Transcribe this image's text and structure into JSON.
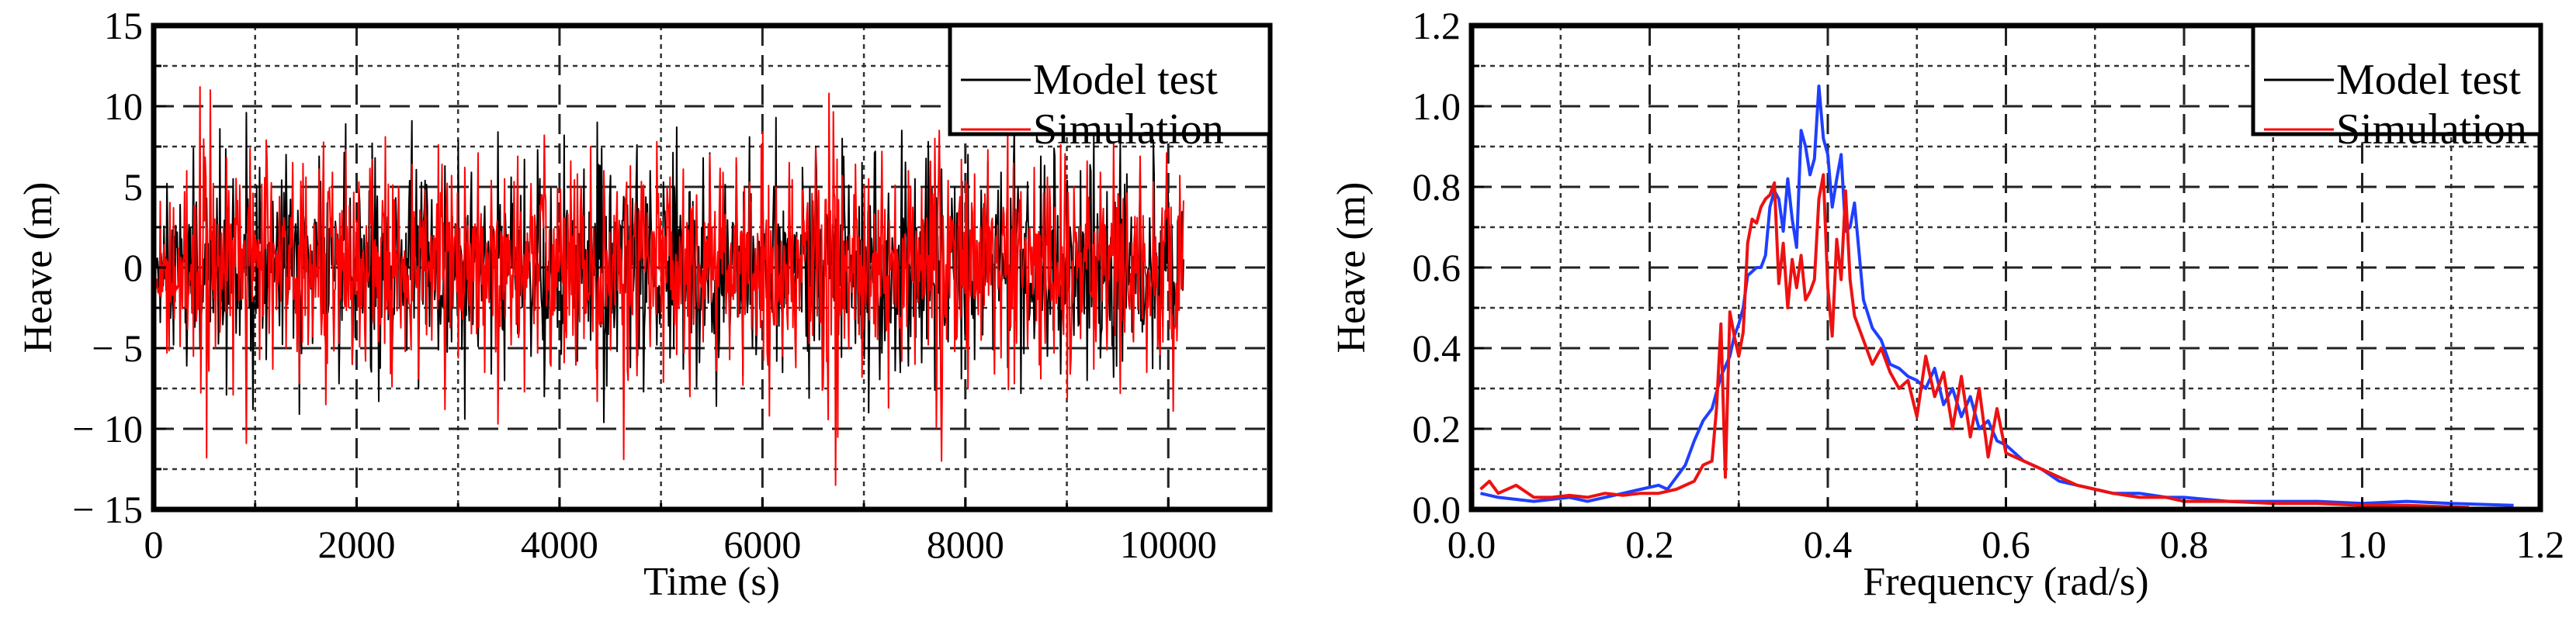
{
  "chart_data": [
    {
      "type": "line",
      "xlabel": "Time (s)",
      "ylabel": "Heave (m)",
      "xlim": [
        0,
        11000
      ],
      "ylim": [
        -15,
        15
      ],
      "xticks": [
        0,
        2000,
        4000,
        6000,
        8000,
        10000
      ],
      "xtick_labels": [
        "0",
        "2000",
        "4000",
        "6000",
        "8000",
        "10000"
      ],
      "yticks": [
        15,
        10,
        5,
        0,
        -5,
        -10,
        -15
      ],
      "ytick_labels": [
        "15",
        "10",
        "5",
        "0",
        "− 5",
        "− 10",
        "− 15"
      ],
      "grid": true,
      "legend": {
        "placement": "top-right",
        "entries": [
          {
            "label": "Model test",
            "color": "#000000"
          },
          {
            "label": "Simulation",
            "color": "#ff0000"
          }
        ]
      },
      "series": [
        {
          "name": "Model test",
          "color": "#000000",
          "x_range": [
            0,
            10150
          ],
          "envelope_note": "irregular heave time series, mostly within ±6 m",
          "values": [
            2.1,
            -3.4,
            5.2,
            -4.8,
            3.9,
            -6.1,
            7.4,
            -5.0,
            4.3,
            -2.8,
            8.6,
            -7.9,
            5.5,
            -4.2,
            9.6,
            -8.8,
            6.2,
            -5.7,
            4.1,
            -3.6,
            7.0,
            -6.4,
            5.8,
            -9.1,
            3.3,
            -4.7,
            6.9,
            -5.3,
            4.6,
            -7.2,
            8.9,
            -6.0,
            5.1,
            -4.4,
            7.7,
            -8.3,
            6.6,
            -5.9,
            4.8,
            -3.9,
            9.1,
            -7.5,
            5.4,
            -6.8,
            4.2,
            -5.1,
            6.3,
            -4.6,
            7.9,
            -9.4,
            5.9,
            -4.9,
            3.8,
            -6.6,
            8.4,
            -7.0,
            5.6,
            -4.1,
            6.7,
            -5.5,
            7.3,
            -8.0,
            4.9,
            -3.7,
            8.2,
            -6.9,
            5.0,
            -5.8,
            6.1,
            -4.5,
            9.0,
            -9.6,
            5.7,
            -5.2,
            4.4,
            -6.2,
            7.6,
            -7.7,
            6.0,
            -4.8,
            5.3,
            -5.6,
            8.7,
            -6.3,
            4.7,
            -7.4,
            6.8,
            -5.0,
            7.1,
            -8.6,
            5.2,
            -4.3,
            6.4,
            -6.7,
            8.1,
            -5.4,
            4.5,
            -7.1,
            9.3,
            -6.5,
            5.6,
            -4.0,
            6.2,
            -8.1,
            7.5,
            -5.8,
            4.9,
            -6.0,
            8.0,
            -7.3,
            5.1,
            -4.7,
            6.5,
            -9.0,
            7.2,
            -5.3,
            4.6,
            -6.4,
            8.5,
            -6.1,
            5.5,
            -5.9,
            7.8,
            -7.6,
            6.1,
            -4.6,
            5.0,
            -6.9,
            7.0,
            -5.7,
            4.8,
            -8.4,
            6.6,
            -4.9,
            5.9,
            -6.2,
            8.8,
            -7.8,
            5.3,
            -4.4,
            6.9,
            -5.5,
            7.4,
            -6.6,
            5.4,
            -4.2,
            6.0,
            -7.0,
            8.3,
            -5.6,
            4.7,
            -6.8,
            7.7,
            -8.2,
            5.8,
            -4.5,
            6.3,
            -5.1,
            7.9,
            -6.3,
            5.2,
            -7.5,
            4.9,
            -3.8
          ]
        },
        {
          "name": "Simulation",
          "color": "#ff0000",
          "x_range": [
            0,
            10150
          ],
          "envelope_note": "irregular heave time series, mostly within ±6 m, peaks to about ±12 m",
          "values": [
            -2.6,
            4.1,
            -5.3,
            3.7,
            -4.9,
            6.0,
            -5.5,
            11.2,
            -11.8,
            5.2,
            -4.0,
            6.8,
            -7.9,
            5.1,
            -10.9,
            4.6,
            -5.7,
            7.9,
            -6.3,
            4.4,
            -5.0,
            6.5,
            -7.2,
            5.6,
            -4.3,
            6.1,
            -8.5,
            5.9,
            -4.7,
            7.3,
            -6.0,
            5.3,
            -5.8,
            6.7,
            -4.6,
            8.1,
            -7.4,
            5.0,
            -5.2,
            6.4,
            -6.9,
            4.8,
            -4.5,
            7.6,
            -8.8,
            5.7,
            -5.6,
            6.2,
            -4.1,
            7.1,
            -6.5,
            5.4,
            -9.7,
            5.5,
            -4.8,
            6.9,
            -7.7,
            5.2,
            -5.3,
            8.2,
            -6.1,
            4.9,
            -5.9,
            6.6,
            -7.0,
            5.8,
            -4.4,
            7.5,
            -8.3,
            6.0,
            -5.1,
            4.7,
            -11.9,
            6.3,
            -6.7,
            5.1,
            -4.9,
            7.8,
            -7.1,
            5.6,
            -5.4,
            6.1,
            -8.0,
            4.5,
            -4.6,
            7.0,
            -6.4,
            5.9,
            -5.7,
            6.8,
            -7.3,
            5.3,
            -4.2,
            8.4,
            -9.2,
            5.0,
            -5.5,
            6.5,
            -6.2,
            4.8,
            -4.7,
            7.4,
            -7.6,
            10.8,
            -13.5,
            5.7,
            -5.0,
            6.4,
            -6.8,
            5.5,
            -4.3,
            7.2,
            -8.7,
            5.1,
            -5.8,
            6.0,
            -6.0,
            4.9,
            -4.8,
            8.0,
            -12.0,
            5.4,
            -5.2,
            6.7,
            -7.5,
            5.8,
            -4.5,
            7.3,
            -6.6,
            5.2,
            -5.6,
            8.6,
            -7.2,
            4.7,
            -4.9,
            6.2,
            -6.9,
            5.6,
            -5.3,
            7.6,
            -8.1,
            5.0,
            -4.4,
            6.6,
            -6.3,
            5.9,
            -5.1,
            7.7,
            -7.8,
            4.6,
            -4.6,
            6.9,
            -6.5,
            5.3,
            -5.4,
            7.1,
            -8.9,
            5.7,
            -4.7
          ]
        }
      ]
    },
    {
      "type": "line",
      "xlabel": "Frequency (rad/s)",
      "ylabel": "Heave (m)",
      "xlim": [
        0,
        1.2
      ],
      "ylim": [
        0,
        1.2
      ],
      "xticks": [
        0.0,
        0.2,
        0.4,
        0.6,
        0.8,
        1.0,
        1.2
      ],
      "xtick_labels": [
        "0.0",
        "0.2",
        "0.4",
        "0.6",
        "0.8",
        "1.0",
        "1.2"
      ],
      "yticks": [
        0.0,
        0.2,
        0.4,
        0.6,
        0.8,
        1.0,
        1.2
      ],
      "ytick_labels": [
        "0.0",
        "0.2",
        "0.4",
        "0.6",
        "0.8",
        "1.0",
        "1.2"
      ],
      "grid": true,
      "legend": {
        "placement": "top-right",
        "entries": [
          {
            "label": "Model test",
            "color": "#000000"
          },
          {
            "label": "Simulation",
            "color": "#ff0000"
          }
        ]
      },
      "series": [
        {
          "name": "Model test",
          "color": "#1f3fff",
          "x": [
            0.01,
            0.03,
            0.05,
            0.07,
            0.09,
            0.11,
            0.13,
            0.15,
            0.17,
            0.19,
            0.21,
            0.22,
            0.23,
            0.24,
            0.25,
            0.26,
            0.27,
            0.28,
            0.29,
            0.295,
            0.3,
            0.305,
            0.31,
            0.315,
            0.32,
            0.325,
            0.33,
            0.335,
            0.34,
            0.345,
            0.35,
            0.355,
            0.36,
            0.365,
            0.37,
            0.375,
            0.38,
            0.385,
            0.39,
            0.395,
            0.4,
            0.405,
            0.41,
            0.415,
            0.42,
            0.425,
            0.43,
            0.44,
            0.45,
            0.46,
            0.47,
            0.48,
            0.49,
            0.5,
            0.51,
            0.52,
            0.53,
            0.54,
            0.55,
            0.56,
            0.57,
            0.58,
            0.59,
            0.6,
            0.62,
            0.64,
            0.66,
            0.68,
            0.7,
            0.72,
            0.75,
            0.78,
            0.8,
            0.85,
            0.9,
            0.95,
            1.0,
            1.05,
            1.1,
            1.17
          ],
          "values": [
            0.04,
            0.03,
            0.025,
            0.02,
            0.025,
            0.03,
            0.02,
            0.03,
            0.04,
            0.05,
            0.06,
            0.05,
            0.08,
            0.11,
            0.17,
            0.22,
            0.25,
            0.33,
            0.38,
            0.43,
            0.46,
            0.5,
            0.58,
            0.59,
            0.6,
            0.6,
            0.63,
            0.75,
            0.79,
            0.77,
            0.69,
            0.82,
            0.72,
            0.65,
            0.94,
            0.9,
            0.83,
            0.87,
            1.05,
            0.92,
            0.88,
            0.75,
            0.82,
            0.88,
            0.69,
            0.7,
            0.76,
            0.52,
            0.45,
            0.42,
            0.36,
            0.35,
            0.33,
            0.32,
            0.3,
            0.35,
            0.26,
            0.3,
            0.23,
            0.28,
            0.2,
            0.22,
            0.17,
            0.16,
            0.12,
            0.1,
            0.07,
            0.06,
            0.05,
            0.04,
            0.04,
            0.03,
            0.03,
            0.02,
            0.02,
            0.02,
            0.015,
            0.02,
            0.015,
            0.01
          ]
        },
        {
          "name": "Simulation",
          "color": "#ee1111",
          "x": [
            0.01,
            0.02,
            0.03,
            0.05,
            0.07,
            0.09,
            0.11,
            0.13,
            0.15,
            0.17,
            0.19,
            0.21,
            0.23,
            0.25,
            0.26,
            0.27,
            0.275,
            0.28,
            0.285,
            0.29,
            0.295,
            0.3,
            0.305,
            0.31,
            0.315,
            0.32,
            0.325,
            0.33,
            0.335,
            0.34,
            0.345,
            0.35,
            0.355,
            0.36,
            0.365,
            0.37,
            0.375,
            0.38,
            0.385,
            0.39,
            0.395,
            0.4,
            0.405,
            0.41,
            0.415,
            0.42,
            0.425,
            0.43,
            0.44,
            0.45,
            0.46,
            0.47,
            0.48,
            0.49,
            0.5,
            0.51,
            0.52,
            0.53,
            0.54,
            0.55,
            0.56,
            0.57,
            0.58,
            0.59,
            0.6,
            0.62,
            0.64,
            0.66,
            0.68,
            0.7,
            0.72,
            0.75,
            0.78,
            0.8,
            0.85,
            0.9,
            0.95,
            1.0,
            1.05,
            1.12
          ],
          "values": [
            0.05,
            0.07,
            0.04,
            0.06,
            0.03,
            0.03,
            0.035,
            0.03,
            0.04,
            0.035,
            0.04,
            0.04,
            0.05,
            0.07,
            0.11,
            0.12,
            0.25,
            0.46,
            0.08,
            0.49,
            0.43,
            0.38,
            0.44,
            0.66,
            0.72,
            0.71,
            0.75,
            0.77,
            0.78,
            0.81,
            0.56,
            0.66,
            0.5,
            0.62,
            0.55,
            0.63,
            0.52,
            0.54,
            0.57,
            0.77,
            0.83,
            0.55,
            0.43,
            0.67,
            0.57,
            0.79,
            0.57,
            0.48,
            0.42,
            0.36,
            0.4,
            0.34,
            0.3,
            0.32,
            0.23,
            0.38,
            0.28,
            0.34,
            0.2,
            0.33,
            0.18,
            0.3,
            0.13,
            0.25,
            0.14,
            0.12,
            0.1,
            0.08,
            0.06,
            0.05,
            0.04,
            0.03,
            0.03,
            0.02,
            0.02,
            0.015,
            0.015,
            0.01,
            0.01,
            0.005
          ]
        }
      ]
    }
  ]
}
